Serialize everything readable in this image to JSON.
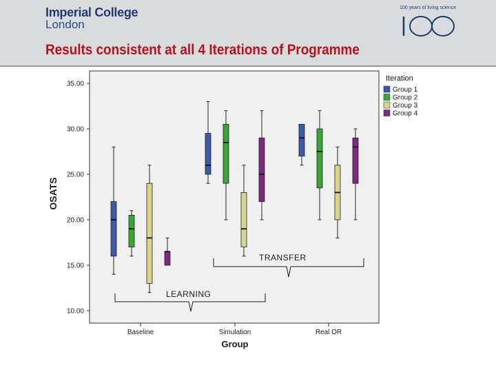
{
  "header": {
    "logo_line1": "Imperial College",
    "logo_line2": "London",
    "centenary_text": "100 years of living science",
    "centenary_number": "100",
    "title": "Results consistent at all 4 Iterations of Programme"
  },
  "colors": {
    "title": "#b5121b",
    "logo": "#1f3b73",
    "header_bg": "#d9dbdc",
    "plot_bg": "#f0f0f0"
  },
  "chart_data": {
    "type": "box",
    "title": "",
    "xlabel": "Group",
    "ylabel": "OSATS",
    "ylim": [
      10,
      35
    ],
    "y_ticks": [
      "10.00",
      "15.00",
      "20.00",
      "25.00",
      "30.00",
      "35.00"
    ],
    "y_tick_values": [
      10,
      15,
      20,
      25,
      30,
      35
    ],
    "grid": false,
    "legend_title": "Iteration",
    "legend_position": "top-right",
    "categories": [
      "Baseline",
      "Simulation",
      "Real OR"
    ],
    "series": [
      {
        "name": "Group 1",
        "color": "#3c5aa8",
        "boxes": [
          {
            "min": 14,
            "q1": 16,
            "median": 20,
            "q3": 22,
            "max": 28
          },
          {
            "min": 24,
            "q1": 25,
            "median": 26,
            "q3": 29.5,
            "max": 33
          },
          {
            "min": 26,
            "q1": 27,
            "median": 29,
            "q3": 30.5,
            "max": 30.5
          }
        ]
      },
      {
        "name": "Group 2",
        "color": "#3aa63a",
        "boxes": [
          {
            "min": 16,
            "q1": 17,
            "median": 19,
            "q3": 20.5,
            "max": 21
          },
          {
            "min": 20,
            "q1": 24,
            "median": 28.5,
            "q3": 30.5,
            "max": 32
          },
          {
            "min": 20,
            "q1": 23.5,
            "median": 27.5,
            "q3": 30,
            "max": 32
          }
        ]
      },
      {
        "name": "Group 3",
        "color": "#d6d48e",
        "boxes": [
          {
            "min": 12,
            "q1": 13,
            "median": 18,
            "q3": 24,
            "max": 26
          },
          {
            "min": 16,
            "q1": 17,
            "median": 19,
            "q3": 23,
            "max": 26
          },
          {
            "min": 18,
            "q1": 20,
            "median": 23,
            "q3": 26,
            "max": 28
          }
        ]
      },
      {
        "name": "Group 4",
        "color": "#7c2b7f",
        "boxes": [
          {
            "min": 15,
            "q1": 15,
            "median": 16.5,
            "q3": 16.5,
            "max": 18
          },
          {
            "min": 20,
            "q1": 22,
            "median": 25,
            "q3": 29,
            "max": 32
          },
          {
            "min": 20,
            "q1": 24,
            "median": 28,
            "q3": 29,
            "max": 30
          }
        ]
      }
    ],
    "annotations": [
      {
        "label": "LEARNING"
      },
      {
        "label": "TRANSFER"
      }
    ]
  }
}
